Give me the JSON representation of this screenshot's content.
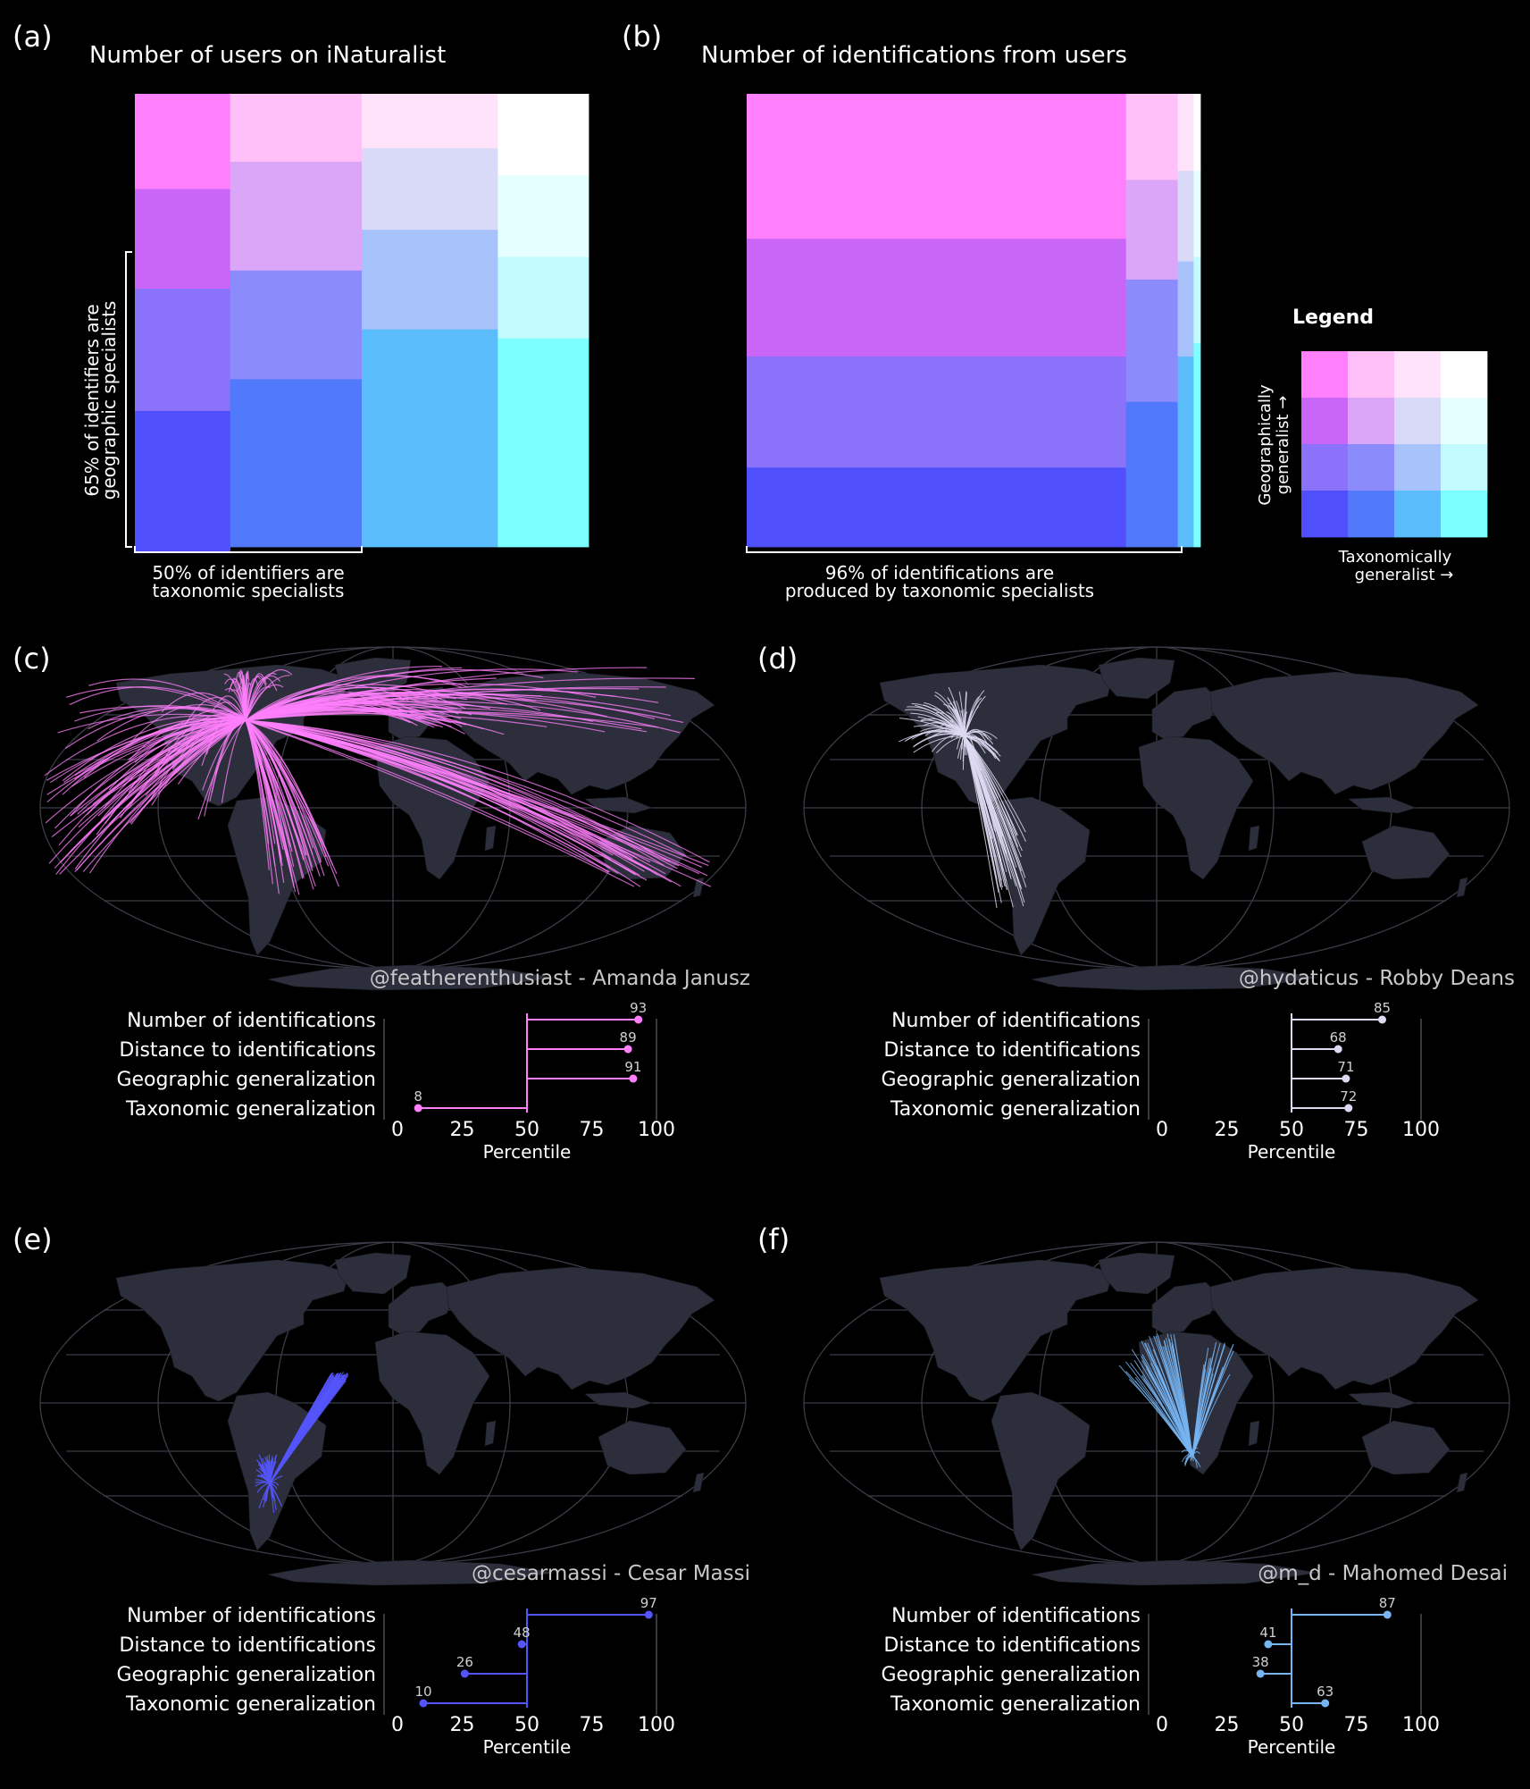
{
  "colors": {
    "background": "#000000",
    "land": "#2c2f3b",
    "graticule": "#3a3d48",
    "axis": "#4a4d57",
    "grid": [
      [
        "#ff7ffc",
        "#ffbff9",
        "#ffe3fb",
        "#ffffff"
      ],
      [
        "#c966f8",
        "#dba6f7",
        "#d8daf7",
        "#e5ffff"
      ],
      [
        "#8a72fa",
        "#8b8bfb",
        "#a8c3fc",
        "#c2fbfd"
      ],
      [
        "#4f4ffc",
        "#5179fc",
        "#5bbdfc",
        "#7cffff"
      ]
    ]
  },
  "panels": {
    "a": {
      "letter": "(a)",
      "title": "Number of users on iNaturalist",
      "bracket_x_line1": "50% of identifiers are",
      "bracket_x_line2": "taxonomic specialists",
      "bracket_y_line1": "65% of identifiers are",
      "bracket_y_line2": "geographic specialists"
    },
    "b": {
      "letter": "(b)",
      "title": "Number of identifications from users",
      "bracket_x_line1": "96% of identifications are",
      "bracket_x_line2": "produced by taxonomic specialists"
    }
  },
  "legend": {
    "title": "Legend",
    "y_line1": "Geographically",
    "y_line2": "generalist →",
    "x_line1": "Taxonomically",
    "x_line2": "generalist →"
  },
  "chart_data": [
    {
      "type": "mosaic",
      "panel": "a",
      "title": "Number of users on iNaturalist",
      "columns_order": "taxonomic specialist → generalist",
      "rows_order": "geographic generalist (top) → specialist (bottom)",
      "column_widths": [
        0.21,
        0.29,
        0.3,
        0.2
      ],
      "row_shares": [
        [
          0.21,
          0.22,
          0.27,
          0.31
        ],
        [
          0.15,
          0.24,
          0.24,
          0.37
        ],
        [
          0.12,
          0.18,
          0.22,
          0.48
        ],
        [
          0.18,
          0.18,
          0.18,
          0.46
        ]
      ]
    },
    {
      "type": "mosaic",
      "panel": "b",
      "title": "Number of identifications from users",
      "columns_order": "taxonomic specialist → generalist",
      "rows_order": "geographic generalist (top) → specialist (bottom)",
      "column_widths": [
        0.836,
        0.114,
        0.035,
        0.015
      ],
      "row_shares": [
        [
          0.32,
          0.26,
          0.245,
          0.175
        ],
        [
          0.19,
          0.22,
          0.27,
          0.32
        ],
        [
          0.17,
          0.2,
          0.21,
          0.42
        ],
        [
          0.17,
          0.19,
          0.19,
          0.45
        ]
      ]
    },
    {
      "type": "lollipop",
      "panel": "c",
      "letter": "(c)",
      "user": "@featherenthusiast - Amanda Janusz",
      "color": "#ff7ffc",
      "categories": [
        "Number of identifications",
        "Distance to identifications",
        "Geographic generalization",
        "Taxonomic generalization"
      ],
      "values": [
        93,
        89,
        91,
        8
      ],
      "xlim": [
        0,
        100
      ],
      "xticks": [
        0,
        25,
        50,
        75,
        100
      ],
      "xlabel": "Percentile",
      "baseline": 50
    },
    {
      "type": "lollipop",
      "panel": "d",
      "letter": "(d)",
      "user": "@hydaticus - Robby Deans",
      "color": "#ded9f2",
      "categories": [
        "Number of identifications",
        "Distance to identifications",
        "Geographic generalization",
        "Taxonomic generalization"
      ],
      "values": [
        85,
        68,
        71,
        72
      ],
      "xlim": [
        0,
        100
      ],
      "xticks": [
        0,
        25,
        50,
        75,
        100
      ],
      "xlabel": "Percentile",
      "baseline": 50
    },
    {
      "type": "lollipop",
      "panel": "e",
      "letter": "(e)",
      "user": "@cesarmassi - Cesar Massi",
      "color": "#5454fb",
      "categories": [
        "Number of identifications",
        "Distance to identifications",
        "Geographic generalization",
        "Taxonomic generalization"
      ],
      "values": [
        97,
        48,
        26,
        10
      ],
      "xlim": [
        0,
        100
      ],
      "xticks": [
        0,
        25,
        50,
        75,
        100
      ],
      "xlabel": "Percentile",
      "baseline": 50
    },
    {
      "type": "lollipop",
      "panel": "f",
      "letter": "(f)",
      "user": "@m_d - Mahomed Desai",
      "color": "#77b4f2",
      "categories": [
        "Number of identifications",
        "Distance to identifications",
        "Geographic generalization",
        "Taxonomic generalization"
      ],
      "values": [
        87,
        41,
        38,
        63
      ],
      "xlim": [
        0,
        100
      ],
      "xticks": [
        0,
        25,
        50,
        75,
        100
      ],
      "xlabel": "Percentile",
      "baseline": 50
    }
  ]
}
